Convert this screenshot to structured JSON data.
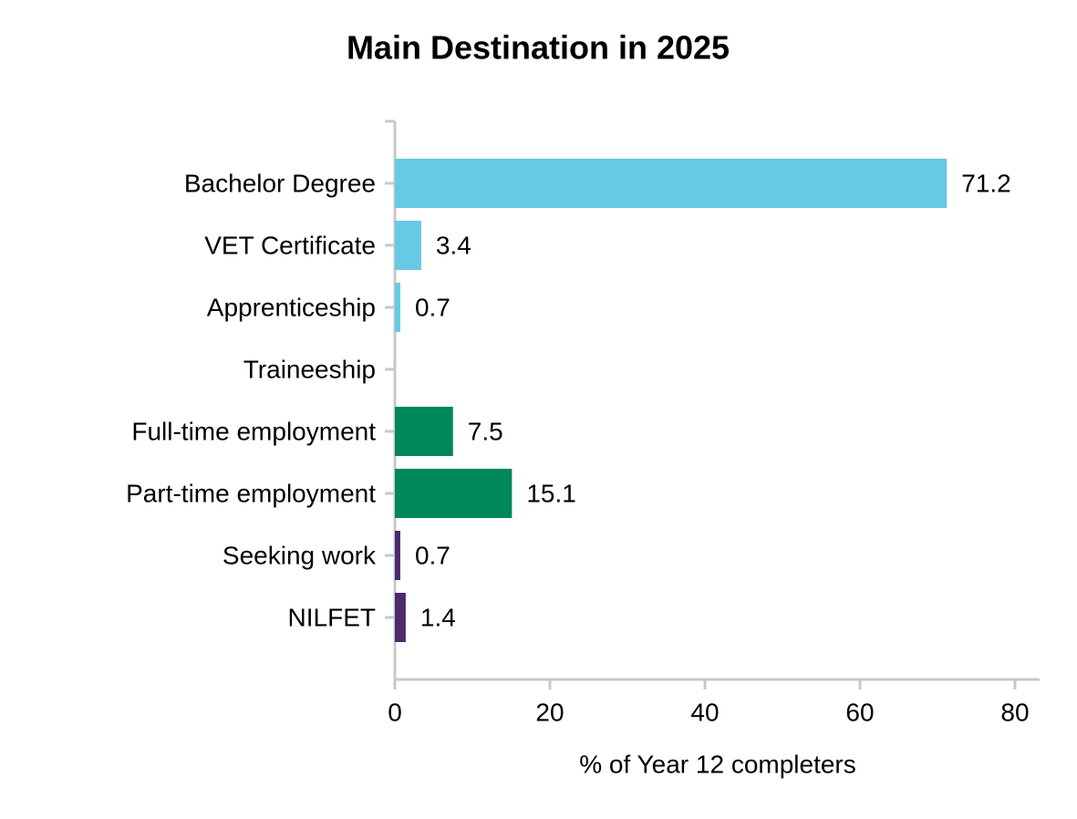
{
  "chart_data": {
    "type": "barh",
    "title": "Main Destination in 2025",
    "x_label": "% of Year 12 completers",
    "categories": [
      "Bachelor Degree",
      "VET Certificate",
      "Apprenticeship",
      "Traineeship",
      "Full-time employment",
      "Part-time employment",
      "Seeking work",
      "NILFET"
    ],
    "values": [
      71.2,
      3.4,
      0.7,
      null,
      7.5,
      15.1,
      0.7,
      1.4
    ],
    "colors": [
      "#66c9e6",
      "#66c9e6",
      "#66c9e6",
      "#66c9e6",
      "#00875a",
      "#00875a",
      "#4b2a6e",
      "#4b2a6e"
    ],
    "xlim": [
      0,
      80
    ],
    "xticks": [
      0,
      20,
      40,
      60,
      80
    ],
    "grid": false
  }
}
